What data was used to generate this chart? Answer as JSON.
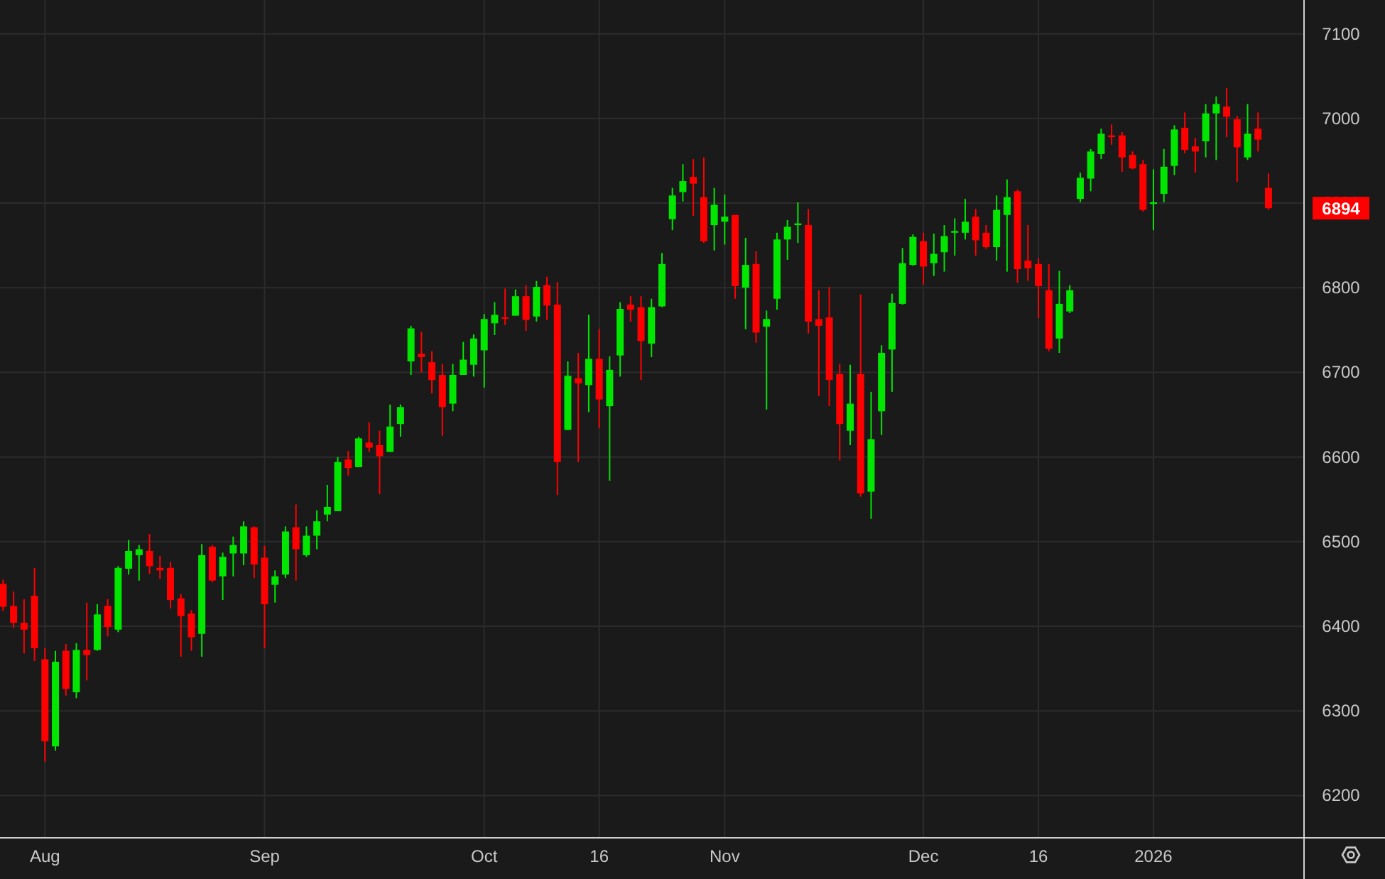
{
  "chart_data": {
    "type": "candlestick",
    "categories": [
      null,
      null,
      null,
      null,
      "Aug",
      null,
      null,
      null,
      null,
      null,
      null,
      null,
      null,
      null,
      null,
      null,
      null,
      null,
      null,
      null,
      null,
      null,
      null,
      null,
      null,
      "Sep",
      null,
      null,
      null,
      null,
      null,
      null,
      null,
      null,
      null,
      null,
      null,
      null,
      null,
      null,
      null,
      null,
      null,
      null,
      null,
      null,
      "Oct",
      null,
      null,
      null,
      null,
      null,
      null,
      null,
      null,
      null,
      null,
      "16",
      null,
      null,
      null,
      null,
      null,
      null,
      null,
      null,
      null,
      null,
      null,
      "Nov",
      null,
      null,
      null,
      null,
      null,
      null,
      null,
      null,
      null,
      null,
      null,
      null,
      null,
      null,
      null,
      null,
      null,
      null,
      "Dec",
      null,
      null,
      null,
      null,
      null,
      null,
      null,
      null,
      null,
      null,
      "16",
      null,
      null,
      null,
      null,
      null,
      null,
      null,
      null,
      null,
      null,
      "2026",
      null,
      null,
      null,
      null,
      null,
      null,
      null,
      null,
      null,
      null,
      null
    ],
    "ohlc": [
      [
        6450,
        6455,
        6418,
        6423
      ],
      [
        6424,
        6441,
        6398,
        6404
      ],
      [
        6404,
        6432,
        6368,
        6396
      ],
      [
        6436,
        6469,
        6359,
        6374
      ],
      [
        6361,
        6374,
        6240,
        6264
      ],
      [
        6258,
        6371,
        6253,
        6358
      ],
      [
        6371,
        6379,
        6318,
        6326
      ],
      [
        6322,
        6380,
        6315,
        6372
      ],
      [
        6372,
        6428,
        6336,
        6366
      ],
      [
        6372,
        6426,
        6371,
        6414
      ],
      [
        6424,
        6432,
        6388,
        6399
      ],
      [
        6396,
        6471,
        6393,
        6469
      ],
      [
        6468,
        6502,
        6461,
        6489
      ],
      [
        6484,
        6496,
        6454,
        6491
      ],
      [
        6489,
        6509,
        6462,
        6471
      ],
      [
        6469,
        6483,
        6456,
        6466
      ],
      [
        6469,
        6476,
        6421,
        6431
      ],
      [
        6433,
        6438,
        6364,
        6412
      ],
      [
        6415,
        6419,
        6371,
        6387
      ],
      [
        6391,
        6497,
        6364,
        6484
      ],
      [
        6494,
        6496,
        6452,
        6454
      ],
      [
        6459,
        6487,
        6431,
        6482
      ],
      [
        6486,
        6506,
        6459,
        6496
      ],
      [
        6486,
        6524,
        6472,
        6518
      ],
      [
        6517,
        6518,
        6457,
        6473
      ],
      [
        6481,
        6495,
        6374,
        6426
      ],
      [
        6449,
        6466,
        6428,
        6459
      ],
      [
        6461,
        6518,
        6457,
        6512
      ],
      [
        6517,
        6544,
        6454,
        6491
      ],
      [
        6484,
        6518,
        6482,
        6507
      ],
      [
        6507,
        6537,
        6491,
        6524
      ],
      [
        6532,
        6567,
        6524,
        6541
      ],
      [
        6536,
        6600,
        6536,
        6594
      ],
      [
        6597,
        6607,
        6578,
        6587
      ],
      [
        6588,
        6624,
        6588,
        6622
      ],
      [
        6617,
        6641,
        6606,
        6611
      ],
      [
        6614,
        6631,
        6556,
        6601
      ],
      [
        6606,
        6662,
        6606,
        6636
      ],
      [
        6639,
        6662,
        6624,
        6659
      ],
      [
        6713,
        6755,
        6697,
        6752
      ],
      [
        6722,
        6748,
        6700,
        6718
      ],
      [
        6712,
        6725,
        6675,
        6691
      ],
      [
        6697,
        6710,
        6625,
        6659
      ],
      [
        6663,
        6710,
        6654,
        6697
      ],
      [
        6697,
        6736,
        6697,
        6715
      ],
      [
        6709,
        6745,
        6695,
        6740
      ],
      [
        6726,
        6769,
        6682,
        6763
      ],
      [
        6758,
        6783,
        6744,
        6768
      ],
      [
        6765,
        6799,
        6756,
        6764
      ],
      [
        6767,
        6798,
        6767,
        6790
      ],
      [
        6790,
        6803,
        6749,
        6762
      ],
      [
        6766,
        6808,
        6760,
        6801
      ],
      [
        6803,
        6813,
        6762,
        6779
      ],
      [
        6780,
        6807,
        6555,
        6594
      ],
      [
        6632,
        6713,
        6632,
        6696
      ],
      [
        6693,
        6723,
        6594,
        6687
      ],
      [
        6685,
        6768,
        6653,
        6716
      ],
      [
        6716,
        6751,
        6634,
        6668
      ],
      [
        6660,
        6719,
        6572,
        6703
      ],
      [
        6720,
        6783,
        6695,
        6775
      ],
      [
        6780,
        6790,
        6760,
        6774
      ],
      [
        6777,
        6790,
        6691,
        6737
      ],
      [
        6734,
        6787,
        6718,
        6777
      ],
      [
        6778,
        6841,
        6777,
        6828
      ],
      [
        6881,
        6918,
        6868,
        6909
      ],
      [
        6913,
        6946,
        6902,
        6926
      ],
      [
        6931,
        6952,
        6885,
        6923
      ],
      [
        6907,
        6954,
        6853,
        6855
      ],
      [
        6874,
        6918,
        6844,
        6898
      ],
      [
        6878,
        6910,
        6851,
        6884
      ],
      [
        6886,
        6886,
        6787,
        6802
      ],
      [
        6800,
        6859,
        6751,
        6827
      ],
      [
        6828,
        6843,
        6735,
        6747
      ],
      [
        6754,
        6773,
        6656,
        6763
      ],
      [
        6787,
        6865,
        6774,
        6857
      ],
      [
        6857,
        6880,
        6833,
        6872
      ],
      [
        6874,
        6901,
        6853,
        6876
      ],
      [
        6874,
        6893,
        6746,
        6760
      ],
      [
        6763,
        6797,
        6672,
        6755
      ],
      [
        6765,
        6801,
        6660,
        6691
      ],
      [
        6698,
        6710,
        6596,
        6639
      ],
      [
        6631,
        6709,
        6614,
        6663
      ],
      [
        6698,
        6792,
        6553,
        6557
      ],
      [
        6559,
        6677,
        6527,
        6621
      ],
      [
        6654,
        6732,
        6626,
        6723
      ],
      [
        6727,
        6793,
        6677,
        6782
      ],
      [
        6781,
        6847,
        6780,
        6829
      ],
      [
        6827,
        6863,
        6826,
        6860
      ],
      [
        6855,
        6865,
        6804,
        6825
      ],
      [
        6829,
        6864,
        6814,
        6840
      ],
      [
        6842,
        6874,
        6819,
        6861
      ],
      [
        6865,
        6882,
        6838,
        6867
      ],
      [
        6865,
        6905,
        6857,
        6878
      ],
      [
        6884,
        6893,
        6838,
        6856
      ],
      [
        6865,
        6874,
        6846,
        6848
      ],
      [
        6848,
        6909,
        6832,
        6892
      ],
      [
        6886,
        6928,
        6819,
        6907
      ],
      [
        6914,
        6916,
        6806,
        6822
      ],
      [
        6832,
        6874,
        6808,
        6823
      ],
      [
        6828,
        6835,
        6764,
        6802
      ],
      [
        6797,
        6828,
        6725,
        6728
      ],
      [
        6740,
        6820,
        6723,
        6781
      ],
      [
        6772,
        6803,
        6770,
        6797
      ],
      [
        6905,
        6936,
        6901,
        6930
      ],
      [
        6929,
        6964,
        6914,
        6961
      ],
      [
        6958,
        6988,
        6952,
        6982
      ],
      [
        6980,
        6993,
        6969,
        6978
      ],
      [
        6980,
        6984,
        6937,
        6954
      ],
      [
        6957,
        6961,
        6940,
        6941
      ],
      [
        6946,
        6951,
        6890,
        6892
      ],
      [
        6899,
        6940,
        6868,
        6901
      ],
      [
        6911,
        6964,
        6901,
        6943
      ],
      [
        6944,
        6992,
        6933,
        6987
      ],
      [
        6989,
        7007,
        6959,
        6963
      ],
      [
        6967,
        6977,
        6936,
        6961
      ],
      [
        6973,
        7017,
        6954,
        7006
      ],
      [
        7006,
        7026,
        6951,
        7017
      ],
      [
        7014,
        7036,
        6978,
        7002
      ],
      [
        6999,
        7003,
        6925,
        6966
      ],
      [
        6954,
        7017,
        6951,
        6982
      ],
      [
        6988,
        7007,
        6961,
        6975
      ],
      [
        6918,
        6935,
        6892,
        6894
      ]
    ],
    "colors": [
      "#ff0000",
      "#ff0000",
      "#ff0000",
      "#ff0000",
      "#ff0000",
      "#00e600",
      "#ff0000",
      "#00e600",
      "#ff0000",
      "#00e600",
      "#ff0000",
      "#00e600",
      "#00e600",
      "#00e600",
      "#ff0000",
      "#ff0000",
      "#ff0000",
      "#ff0000",
      "#ff0000",
      "#00e600",
      "#ff0000",
      "#00e600",
      "#00e600",
      "#00e600",
      "#ff0000",
      "#ff0000",
      "#00e600",
      "#00e600",
      "#ff0000",
      "#00e600",
      "#00e600",
      "#00e600",
      "#00e600",
      "#ff0000",
      "#00e600",
      "#ff0000",
      "#ff0000",
      "#00e600",
      "#00e600",
      "#00e600",
      "#ff0000",
      "#ff0000",
      "#ff0000",
      "#00e600",
      "#00e600",
      "#00e600",
      "#00e600",
      "#00e600",
      "#ff0000",
      "#00e600",
      "#ff0000",
      "#00e600",
      "#ff0000",
      "#ff0000",
      "#00e600",
      "#ff0000",
      "#00e600",
      "#ff0000",
      "#00e600",
      "#00e600",
      "#ff0000",
      "#ff0000",
      "#00e600",
      "#00e600",
      "#00e600",
      "#00e600",
      "#ff0000",
      "#ff0000",
      "#00e600",
      "#00e600",
      "#ff0000",
      "#00e600",
      "#ff0000",
      "#00e600",
      "#00e600",
      "#00e600",
      "#00e600",
      "#ff0000",
      "#ff0000",
      "#ff0000",
      "#ff0000",
      "#00e600",
      "#ff0000",
      "#00e600",
      "#00e600",
      "#00e600",
      "#00e600",
      "#00e600",
      "#ff0000",
      "#00e600",
      "#00e600",
      "#00e600",
      "#00e600",
      "#ff0000",
      "#ff0000",
      "#00e600",
      "#00e600",
      "#ff0000",
      "#ff0000",
      "#ff0000",
      "#ff0000",
      "#00e600",
      "#00e600",
      "#00e600",
      "#00e600",
      "#00e600",
      "#ff0000",
      "#ff0000",
      "#ff0000",
      "#ff0000",
      "#00e600",
      "#00e600",
      "#00e600",
      "#ff0000",
      "#ff0000",
      "#00e600",
      "#00e600",
      "#ff0000",
      "#ff0000",
      "#00e600",
      "#ff0000",
      "#ff0000"
    ],
    "ylim": [
      6150,
      7140
    ],
    "yticks": [
      6200,
      6300,
      6400,
      6500,
      6600,
      6700,
      6800,
      6900,
      7000,
      7100
    ],
    "grid": true,
    "annotations": [
      "6894"
    ]
  }
}
